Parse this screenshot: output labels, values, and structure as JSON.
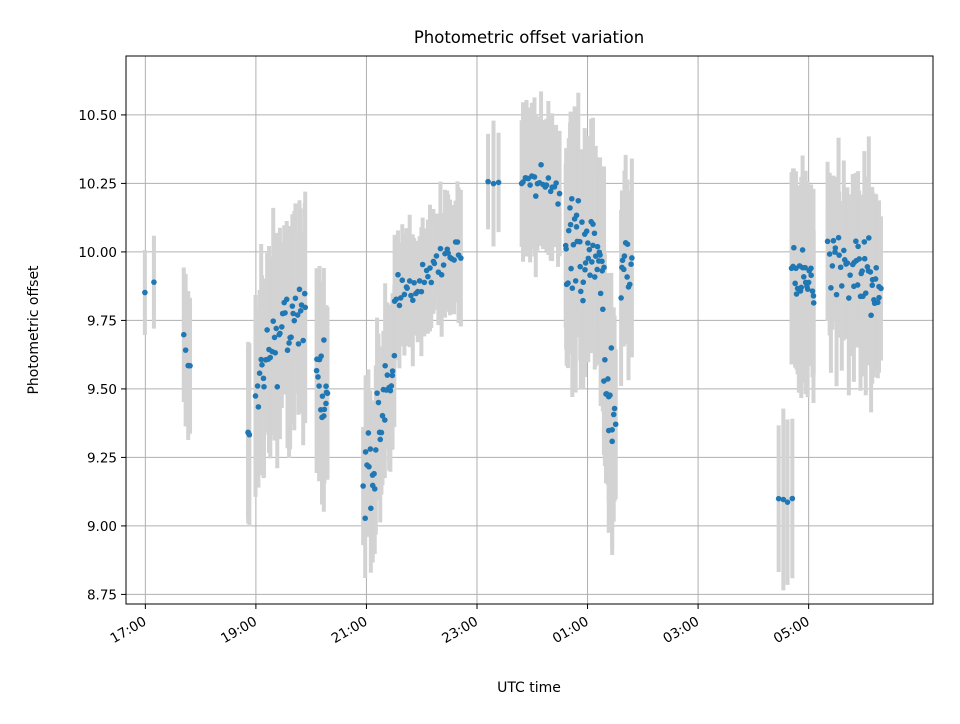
{
  "chart_data": {
    "type": "scatter",
    "title": "Photometric offset variation",
    "xlabel": "UTC time",
    "ylabel": "Photometric offset",
    "x_ticks": [
      "17:00",
      "19:00",
      "21:00",
      "23:00",
      "01:00",
      "03:00",
      "05:00"
    ],
    "x_tick_hours": [
      17,
      19,
      21,
      23,
      25,
      27,
      29
    ],
    "y_ticks": [
      "8.75",
      "9.00",
      "9.25",
      "9.50",
      "9.75",
      "10.00",
      "10.25",
      "10.50"
    ],
    "y_tick_values": [
      8.75,
      9.0,
      9.25,
      9.5,
      9.75,
      10.0,
      10.25,
      10.5
    ],
    "xlim_hours": [
      16.65,
      31.25
    ],
    "ylim": [
      8.715,
      10.715
    ],
    "grid": true,
    "point_color": "#1f77b4",
    "errorbar_color": "#d3d3d3",
    "segments": [
      {
        "start": 17.0,
        "end": 17.15,
        "n": 2,
        "base": 9.86,
        "slope": 0.0,
        "noise": 0.04,
        "err": 0.2
      },
      {
        "start": 17.7,
        "end": 17.8,
        "n": 4,
        "base": 9.6,
        "slope": -1.5,
        "noise": 0.05,
        "err": 0.32
      },
      {
        "start": 18.85,
        "end": 18.88,
        "n": 3,
        "base": 9.34,
        "slope": 0.0,
        "noise": 0.03,
        "err": 0.3
      },
      {
        "start": 19.0,
        "end": 19.9,
        "n": 42,
        "base": 9.7,
        "slope": 0.3,
        "noise": 0.11,
        "err": 0.34
      },
      {
        "start": 20.1,
        "end": 20.3,
        "n": 16,
        "base": 9.5,
        "slope": 0.0,
        "noise": 0.12,
        "err": 0.3
      },
      {
        "start": 20.95,
        "end": 21.5,
        "n": 30,
        "base": 9.35,
        "slope": 0.8,
        "noise": 0.11,
        "err": 0.25
      },
      {
        "start": 21.5,
        "end": 22.7,
        "n": 40,
        "base": 9.92,
        "slope": 0.17,
        "noise": 0.05,
        "err": 0.2
      },
      {
        "start": 23.2,
        "end": 23.4,
        "n": 3,
        "base": 10.26,
        "slope": 0.0,
        "noise": 0.03,
        "err": 0.22
      },
      {
        "start": 23.8,
        "end": 24.5,
        "n": 22,
        "base": 10.25,
        "slope": -0.1,
        "noise": 0.05,
        "err": 0.25
      },
      {
        "start": 24.6,
        "end": 25.3,
        "n": 48,
        "base": 9.97,
        "slope": -0.1,
        "noise": 0.13,
        "err": 0.33
      },
      {
        "start": 25.3,
        "end": 25.5,
        "n": 14,
        "base": 9.5,
        "slope": 0.0,
        "noise": 0.13,
        "err": 0.35
      },
      {
        "start": 25.6,
        "end": 25.8,
        "n": 12,
        "base": 9.95,
        "slope": 0.0,
        "noise": 0.1,
        "err": 0.3
      },
      {
        "start": 28.45,
        "end": 28.7,
        "n": 4,
        "base": 9.1,
        "slope": 0.0,
        "noise": 0.01,
        "err": 0.3
      },
      {
        "start": 28.7,
        "end": 29.1,
        "n": 25,
        "base": 9.9,
        "slope": 0.0,
        "noise": 0.1,
        "err": 0.33
      },
      {
        "start": 29.35,
        "end": 29.75,
        "n": 18,
        "base": 9.95,
        "slope": 0.0,
        "noise": 0.1,
        "err": 0.3
      },
      {
        "start": 29.8,
        "end": 30.3,
        "n": 30,
        "base": 9.88,
        "slope": 0.0,
        "noise": 0.1,
        "err": 0.3
      }
    ]
  }
}
